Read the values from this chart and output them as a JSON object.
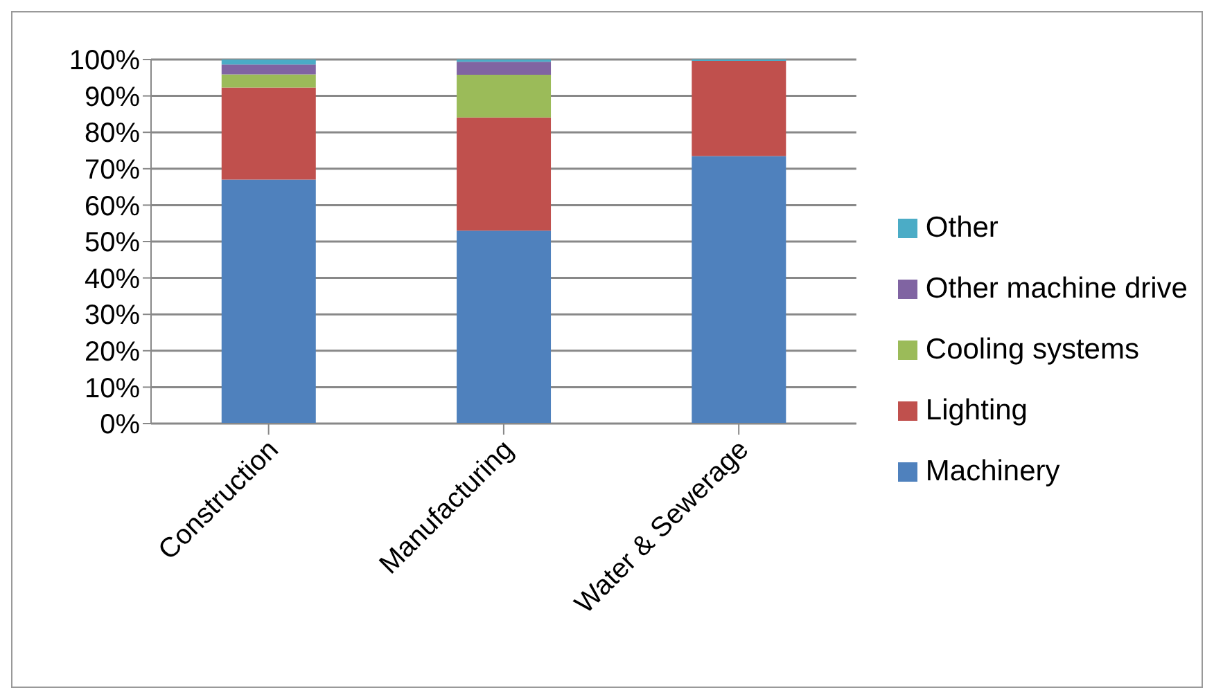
{
  "chart_data": {
    "type": "bar",
    "stacked": true,
    "categories": [
      "Construction",
      "Manufacturing",
      "Water & Sewerage"
    ],
    "series": [
      {
        "name": "Machinery",
        "color": "#4f81bd",
        "values": [
          67,
          53,
          73.5
        ]
      },
      {
        "name": "Lighting",
        "color": "#c0504d",
        "values": [
          25.3,
          31.1,
          26.1
        ]
      },
      {
        "name": "Cooling systems",
        "color": "#9bbb59",
        "values": [
          3.6,
          11.7,
          0
        ]
      },
      {
        "name": "Other machine drive",
        "color": "#8064a2",
        "values": [
          2.7,
          3.6,
          0
        ]
      },
      {
        "name": "Other",
        "color": "#4bacc6",
        "values": [
          1.4,
          0.6,
          0.4
        ]
      }
    ],
    "ylim": [
      0,
      100
    ],
    "yticks": [
      {
        "value": 0,
        "label": "0%"
      },
      {
        "value": 10,
        "label": "10%"
      },
      {
        "value": 20,
        "label": "20%"
      },
      {
        "value": 30,
        "label": "30%"
      },
      {
        "value": 40,
        "label": "40%"
      },
      {
        "value": 50,
        "label": "50%"
      },
      {
        "value": 60,
        "label": "60%"
      },
      {
        "value": 70,
        "label": "70%"
      },
      {
        "value": 80,
        "label": "80%"
      },
      {
        "value": 90,
        "label": "90%"
      },
      {
        "value": 100,
        "label": "100%"
      }
    ],
    "grid": "y",
    "legend": "right"
  }
}
